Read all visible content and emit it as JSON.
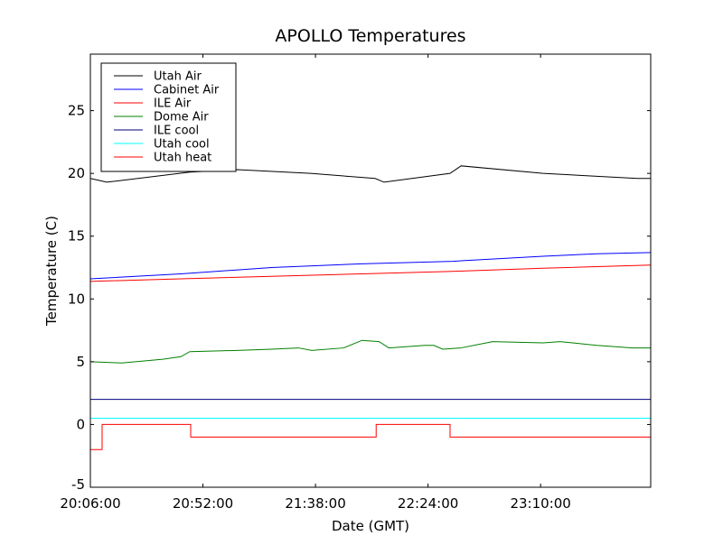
{
  "chart_data": {
    "type": "line",
    "title": "APOLLO Temperatures",
    "xlabel": "Date (GMT)",
    "ylabel": "Temperature (C)",
    "x_unit": "minutes since 20:06:00",
    "xlim": [
      0,
      229
    ],
    "ylim": [
      -5,
      29.5
    ],
    "xticks": [
      {
        "value": 0,
        "label": "20:06:00"
      },
      {
        "value": 46,
        "label": "20:52:00"
      },
      {
        "value": 92,
        "label": "21:38:00"
      },
      {
        "value": 138,
        "label": "22:24:00"
      },
      {
        "value": 184,
        "label": "23:10:00"
      }
    ],
    "yticks": [
      {
        "value": -5,
        "label": "-5"
      },
      {
        "value": 0,
        "label": "0"
      },
      {
        "value": 5,
        "label": "5"
      },
      {
        "value": 10,
        "label": "10"
      },
      {
        "value": 15,
        "label": "15"
      },
      {
        "value": 20,
        "label": "20"
      },
      {
        "value": 25,
        "label": "25"
      }
    ],
    "grid": false,
    "legend_position": "top-left",
    "series": [
      {
        "name": "Utah Air",
        "color": "#000000",
        "x": [
          0,
          6.7,
          40.6,
          60,
          90,
          116.4,
          120,
          147,
          151.5,
          185,
          223.5,
          229
        ],
        "y": [
          19.6,
          19.3,
          20.1,
          20.3,
          20.0,
          19.6,
          19.3,
          20.0,
          20.6,
          20.0,
          19.6,
          19.6
        ]
      },
      {
        "name": "Cabinet Air",
        "color": "#0000ff",
        "x": [
          0,
          37,
          74,
          111,
          148,
          185,
          207,
          229
        ],
        "y": [
          11.6,
          12.0,
          12.5,
          12.8,
          13.0,
          13.4,
          13.6,
          13.7
        ]
      },
      {
        "name": "ILE Air",
        "color": "#ff0000",
        "x": [
          0,
          37,
          74,
          111,
          148,
          185,
          229
        ],
        "y": [
          11.4,
          11.6,
          11.8,
          12.0,
          12.2,
          12.45,
          12.7
        ]
      },
      {
        "name": "Dome Air",
        "color": "#008000",
        "x": [
          0,
          12.9,
          29.6,
          37,
          40.6,
          60,
          74,
          85,
          90.5,
          103.5,
          111,
          118,
          122,
          136.7,
          140.4,
          144,
          151.5,
          164.4,
          185,
          192,
          207,
          221.7,
          229
        ],
        "y": [
          5.0,
          4.9,
          5.2,
          5.4,
          5.8,
          5.9,
          6.0,
          6.1,
          5.9,
          6.1,
          6.7,
          6.6,
          6.1,
          6.3,
          6.3,
          6.0,
          6.1,
          6.6,
          6.5,
          6.6,
          6.3,
          6.1,
          6.1
        ]
      },
      {
        "name": "ILE cool",
        "color": "#000080",
        "x": [
          0,
          229
        ],
        "y": [
          2.0,
          2.0
        ]
      },
      {
        "name": "Utah cool",
        "color": "#00ffff",
        "x": [
          0,
          229
        ],
        "y": [
          0.5,
          0.5
        ]
      },
      {
        "name": "Utah heat",
        "color": "#ff0000",
        "step": true,
        "x": [
          0,
          4.8,
          41,
          116.8,
          147,
          229
        ],
        "y": [
          -2,
          0,
          -1,
          0,
          -1,
          -1
        ]
      }
    ]
  }
}
